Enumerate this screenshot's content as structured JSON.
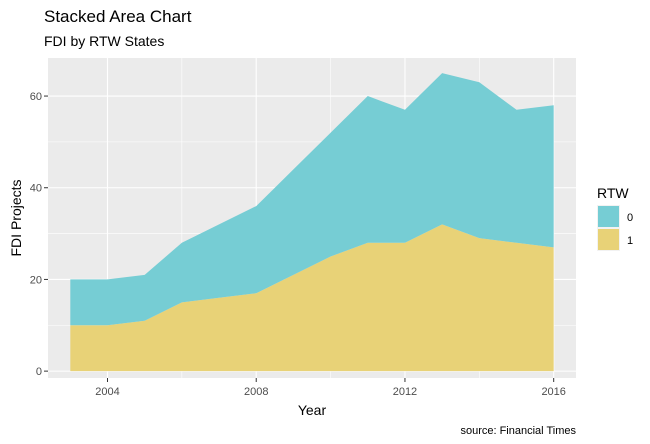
{
  "chart_data": {
    "type": "area",
    "stacked": true,
    "title": "Stacked Area Chart",
    "subtitle": "FDI by RTW States",
    "xlabel": "Year",
    "ylabel": "FDI Projects",
    "caption": "source: Financial Times",
    "legend_title": "RTW",
    "legend_position": "right",
    "grid": true,
    "xlim": [
      2002.4,
      2016.6
    ],
    "ylim": [
      -1.5,
      68.3
    ],
    "x_ticks": [
      2004,
      2008,
      2012,
      2016
    ],
    "y_ticks": [
      0,
      20,
      40,
      60
    ],
    "x": [
      2003,
      2004,
      2005,
      2006,
      2007,
      2008,
      2009,
      2010,
      2011,
      2012,
      2013,
      2014,
      2015,
      2016
    ],
    "series": [
      {
        "name": "1",
        "color": "#E8D277",
        "values": [
          10,
          10,
          11,
          15,
          16,
          17,
          21,
          25,
          28,
          28,
          32,
          29,
          28,
          27
        ]
      },
      {
        "name": "0",
        "color": "#76CDD4",
        "values": [
          10,
          10,
          10,
          13,
          16,
          19,
          23,
          27,
          32,
          29,
          33,
          34,
          29,
          31
        ]
      }
    ],
    "legend_order": [
      "0",
      "1"
    ]
  },
  "colors": {
    "panel_background": "#EBEBEB",
    "grid_major": "#FFFFFF",
    "tick_text": "#4D4D4D",
    "tick_mark": "#333333"
  }
}
